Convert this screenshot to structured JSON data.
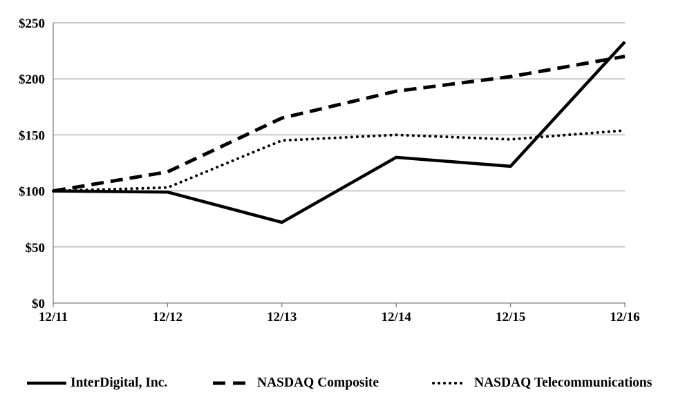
{
  "chart_data": {
    "type": "line",
    "title": "",
    "categories": [
      "12/11",
      "12/12",
      "12/13",
      "12/14",
      "12/15",
      "12/16"
    ],
    "series": [
      {
        "name": "InterDigital, Inc.",
        "style": "solid",
        "values": [
          100,
          99,
          72,
          130,
          122,
          233
        ]
      },
      {
        "name": "NASDAQ Composite",
        "style": "dashed",
        "values": [
          100,
          117,
          165,
          189,
          202,
          220
        ]
      },
      {
        "name": "NASDAQ Telecommunications",
        "style": "dotted",
        "values": [
          100,
          103,
          145,
          150,
          146,
          154
        ]
      }
    ],
    "y_ticks": [
      {
        "label": "$0",
        "value": 0
      },
      {
        "label": "$50",
        "value": 50
      },
      {
        "label": "$100",
        "value": 100
      },
      {
        "label": "$150",
        "value": 150
      },
      {
        "label": "$200",
        "value": 200
      },
      {
        "label": "$250",
        "value": 250
      }
    ],
    "ylim": [
      0,
      250
    ],
    "xlabel": "",
    "ylabel": "",
    "grid": "horizontal",
    "legend_position": "bottom",
    "colors": {
      "line": "#000000",
      "axis": "#808080",
      "grid": "#898989",
      "text": "#000000",
      "background": "#ffffff"
    }
  }
}
